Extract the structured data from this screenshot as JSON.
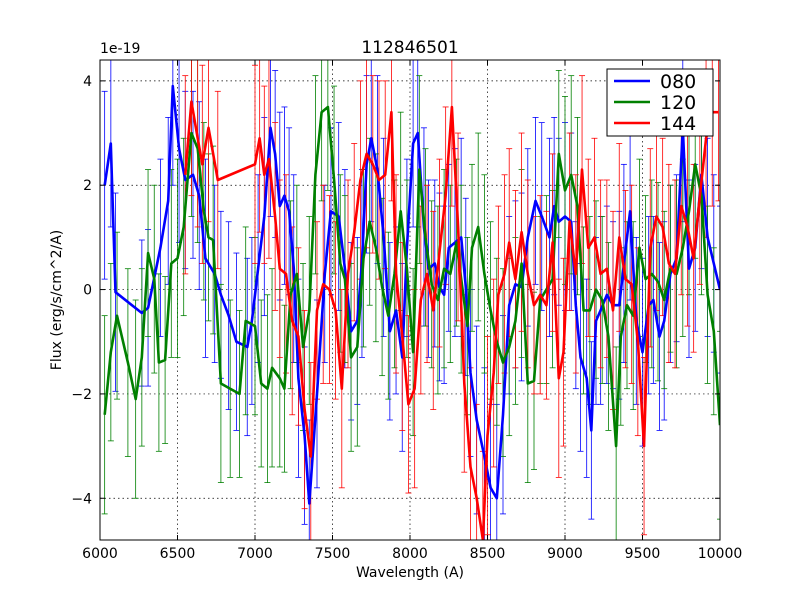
{
  "chart_data": {
    "type": "line",
    "title": "112846501",
    "xlabel": "Wavelength (A)",
    "ylabel": "Flux (erg/s/cm^2/A)",
    "offset_label": "1e-19",
    "xlim": [
      6000,
      10000
    ],
    "ylim": [
      -4.8,
      4.4
    ],
    "x_ticks": [
      6000,
      6500,
      7000,
      7500,
      8000,
      8500,
      9000,
      9500,
      10000
    ],
    "x_tick_labels": [
      "6000",
      "6500",
      "7000",
      "7500",
      "8000",
      "8500",
      "9000",
      "9500",
      "10000"
    ],
    "y_ticks": [
      -4,
      -2,
      0,
      2,
      4
    ],
    "y_tick_labels": [
      "−4",
      "−2",
      "0",
      "2",
      "4"
    ],
    "grid": true,
    "legend_position": "top-right",
    "series": [
      {
        "name": "080",
        "color": "#0000ff",
        "x": [
          6030,
          6070,
          6100,
          6270,
          6310,
          6390,
          6440,
          6470,
          6510,
          6550,
          6600,
          6640,
          6680,
          6740,
          6780,
          6830,
          6880,
          6950,
          6980,
          7020,
          7060,
          7100,
          7130,
          7160,
          7190,
          7220,
          7250,
          7280,
          7320,
          7350,
          7400,
          7450,
          7490,
          7540,
          7580,
          7620,
          7660,
          7690,
          7720,
          7750,
          7790,
          7830,
          7870,
          7910,
          7950,
          7980,
          8020,
          8050,
          8090,
          8120,
          8160,
          8190,
          8220,
          8250,
          8290,
          8330,
          8360,
          8390,
          8430,
          8480,
          8520,
          8560,
          8600,
          8640,
          8680,
          8720,
          8760,
          8810,
          8850,
          8900,
          8930,
          8960,
          9000,
          9040,
          9070,
          9100,
          9140,
          9170,
          9200,
          9230,
          9270,
          9310,
          9350,
          9380,
          9420,
          9460,
          9500,
          9540,
          9570,
          9610,
          9640,
          9680,
          9720,
          9760,
          9800,
          9840,
          9880,
          9920,
          9960,
          10000
        ],
        "y": [
          2.0,
          2.8,
          -0.05,
          -0.45,
          -0.35,
          0.8,
          1.7,
          3.9,
          2.7,
          2.1,
          2.2,
          1.8,
          0.6,
          0.3,
          -0.1,
          -0.5,
          -1.0,
          -1.1,
          -0.6,
          0.4,
          1.4,
          3.1,
          2.6,
          1.6,
          1.8,
          1.5,
          0.4,
          -1.7,
          -2.8,
          -4.1,
          -2.0,
          0.3,
          1.5,
          1.4,
          0.4,
          -0.8,
          -0.6,
          0.5,
          2.4,
          2.9,
          2.3,
          1.0,
          -0.8,
          -0.4,
          -1.3,
          0.8,
          2.8,
          3.0,
          1.2,
          0.4,
          0.5,
          0.05,
          -0.1,
          0.8,
          0.9,
          1.0,
          0.05,
          -1.6,
          -2.5,
          -3.2,
          -3.8,
          -4.0,
          -2.4,
          -0.3,
          0.1,
          0.05,
          1.0,
          1.7,
          1.4,
          1.0,
          1.6,
          1.3,
          1.4,
          1.3,
          -0.3,
          -1.3,
          -1.7,
          -2.7,
          -0.6,
          -0.4,
          -0.1,
          -0.3,
          -0.3,
          0.5,
          1.5,
          -0.6,
          -1.2,
          -0.3,
          -0.2,
          -0.9,
          -0.6,
          0.3,
          0.6,
          3.1,
          0.4,
          0.8,
          2.2,
          1.0,
          0.5,
          0.0
        ],
        "err": [
          1.8,
          1.6,
          1.9,
          1.4,
          1.5,
          1.7,
          1.6,
          1.9,
          1.8,
          1.7,
          1.6,
          1.8,
          1.9,
          1.7,
          1.6,
          1.8,
          1.7,
          1.7,
          1.6,
          1.8,
          1.9,
          1.7,
          1.6,
          1.8,
          1.7,
          1.6,
          1.8,
          1.9,
          1.7,
          1.6,
          1.8,
          1.7,
          1.6,
          1.8,
          1.9,
          1.7,
          1.6,
          1.8,
          1.7,
          1.6,
          1.8,
          1.9,
          1.7,
          1.6,
          1.8,
          1.7,
          1.6,
          1.8,
          1.9,
          1.7,
          1.6,
          1.8,
          1.7,
          1.6,
          1.8,
          1.9,
          1.7,
          1.6,
          1.8,
          1.7,
          1.6,
          1.8,
          1.9,
          1.7,
          1.6,
          1.8,
          1.7,
          1.6,
          1.8,
          1.9,
          1.7,
          1.6,
          1.8,
          1.7,
          1.6,
          1.8,
          1.9,
          1.7,
          1.6,
          1.8,
          1.7,
          1.6,
          1.8,
          1.9,
          1.7,
          1.6,
          1.8,
          1.7,
          1.6,
          1.8,
          1.9,
          1.7,
          1.6,
          1.8,
          1.7,
          1.6,
          1.8,
          1.9,
          1.7,
          1.6
        ]
      },
      {
        "name": "120",
        "color": "#008000",
        "x": [
          6030,
          6070,
          6110,
          6180,
          6230,
          6270,
          6310,
          6350,
          6380,
          6420,
          6460,
          6500,
          6540,
          6590,
          6630,
          6670,
          6700,
          6730,
          6780,
          6840,
          6900,
          6940,
          7000,
          7040,
          7080,
          7110,
          7160,
          7190,
          7230,
          7270,
          7310,
          7350,
          7390,
          7430,
          7470,
          7510,
          7550,
          7580,
          7620,
          7660,
          7700,
          7740,
          7780,
          7820,
          7860,
          7900,
          7940,
          7980,
          8020,
          8060,
          8100,
          8140,
          8180,
          8220,
          8260,
          8300,
          8330,
          8370,
          8400,
          8440,
          8480,
          8520,
          8560,
          8600,
          8640,
          8680,
          8720,
          8760,
          8800,
          8840,
          8880,
          8920,
          8960,
          9000,
          9040,
          9080,
          9120,
          9160,
          9200,
          9240,
          9280,
          9330,
          9360,
          9400,
          9440,
          9480,
          9520,
          9560,
          9600,
          9640,
          9680,
          9720,
          9760,
          9800,
          9840,
          9880,
          9920,
          9960,
          10000
        ],
        "y": [
          -2.4,
          -1.2,
          -0.5,
          -1.4,
          -2.1,
          -1.3,
          0.7,
          0.2,
          -1.4,
          -1.35,
          0.5,
          0.6,
          1.2,
          3.0,
          2.7,
          1.5,
          1.0,
          0.95,
          -1.8,
          -1.9,
          -2.0,
          -0.6,
          -0.7,
          -1.8,
          -1.9,
          -1.5,
          -1.7,
          -1.9,
          -0.1,
          0.3,
          -1.1,
          -0.4,
          2.2,
          3.4,
          3.5,
          2.1,
          0.5,
          0.2,
          -1.3,
          -1.1,
          0.6,
          1.3,
          0.8,
          0.05,
          -0.5,
          0.3,
          1.5,
          0.4,
          -1.2,
          2.3,
          1.0,
          0.1,
          -0.2,
          0.4,
          0.3,
          0.9,
          0.2,
          -0.7,
          0.8,
          1.2,
          0.3,
          -0.4,
          -1.0,
          -1.4,
          -1.1,
          -0.6,
          0.5,
          -1.8,
          -1.75,
          -0.2,
          0.0,
          0.2,
          2.6,
          1.9,
          2.2,
          1.6,
          -0.4,
          -0.4,
          0.0,
          -0.2,
          -0.9,
          -3.0,
          -0.9,
          -0.3,
          -0.5,
          0.8,
          0.2,
          0.3,
          0.15,
          -0.2,
          0.4,
          0.3,
          0.8,
          1.5,
          2.4,
          1.8,
          -0.1,
          -0.8,
          -2.6
        ],
        "err": [
          1.9,
          1.7,
          1.6,
          1.8,
          1.9,
          1.7,
          1.6,
          1.8,
          1.7,
          1.6,
          1.8,
          1.9,
          1.7,
          1.6,
          1.8,
          1.7,
          1.6,
          1.8,
          1.9,
          1.7,
          1.6,
          1.8,
          1.7,
          1.6,
          1.8,
          1.9,
          1.7,
          1.6,
          1.8,
          1.7,
          1.6,
          1.8,
          1.9,
          1.7,
          1.6,
          1.8,
          1.7,
          1.6,
          1.8,
          1.9,
          1.7,
          1.6,
          1.8,
          1.7,
          1.6,
          1.8,
          1.9,
          1.7,
          1.6,
          1.8,
          1.7,
          1.6,
          1.8,
          1.9,
          1.7,
          1.6,
          1.8,
          1.7,
          1.6,
          1.8,
          1.9,
          1.7,
          1.6,
          1.8,
          1.7,
          1.6,
          1.8,
          1.9,
          1.7,
          1.6,
          1.8,
          1.7,
          1.6,
          1.8,
          1.9,
          1.7,
          1.6,
          1.8,
          1.7,
          1.6,
          1.8,
          1.9,
          1.7,
          1.6,
          1.8,
          1.7,
          1.6,
          1.8,
          1.9,
          1.7,
          1.6,
          1.8,
          1.7,
          1.6,
          1.8,
          1.9,
          1.7,
          1.6,
          1.8
        ]
      },
      {
        "name": "144",
        "color": "#ff0000",
        "x": [
          6550,
          6590,
          6630,
          6660,
          6700,
          6760,
          7000,
          7030,
          7060,
          7090,
          7130,
          7160,
          7200,
          7240,
          7280,
          7320,
          7360,
          7400,
          7440,
          7480,
          7520,
          7560,
          7600,
          7640,
          7680,
          7720,
          7760,
          7800,
          7840,
          7880,
          7910,
          7950,
          7990,
          8030,
          8070,
          8110,
          8150,
          8190,
          8230,
          8270,
          8310,
          8350,
          8390,
          8430,
          8470,
          8500,
          8540,
          8570,
          8610,
          8640,
          8680,
          8720,
          8760,
          8800,
          8840,
          8880,
          8920,
          8960,
          8990,
          9030,
          9070,
          9110,
          9150,
          9190,
          9230,
          9270,
          9310,
          9350,
          9390,
          9430,
          9470,
          9510,
          9550,
          9590,
          9630,
          9670,
          9710,
          9750,
          9790,
          9830,
          9870,
          9910,
          9950,
          9990
        ],
        "y": [
          2.2,
          3.6,
          2.9,
          2.4,
          3.1,
          2.1,
          2.4,
          2.9,
          2.2,
          2.5,
          1.4,
          0.4,
          0.3,
          -0.6,
          -0.9,
          -2.3,
          -3.2,
          -0.4,
          0.1,
          0.0,
          -0.4,
          -1.9,
          0.3,
          1.1,
          2.1,
          2.6,
          2.4,
          2.1,
          2.2,
          3.4,
          0.3,
          -0.9,
          -2.2,
          -1.9,
          -0.2,
          0.3,
          -0.4,
          0.7,
          1.8,
          3.5,
          1.2,
          -1.8,
          -3.4,
          -4.0,
          -4.8,
          -2.8,
          -1.6,
          -0.1,
          0.3,
          0.9,
          0.2,
          1.1,
          0.3,
          -0.3,
          -0.1,
          -0.3,
          0.9,
          -1.7,
          -1.2,
          1.3,
          0.3,
          2.3,
          0.8,
          1.0,
          0.3,
          0.4,
          -0.4,
          1.0,
          0.2,
          0.1,
          -1.0,
          -3.0,
          0.8,
          1.4,
          1.2,
          0.5,
          0.3,
          1.6,
          1.2,
          0.6,
          1.8,
          2.9,
          3.4,
          3.4
        ],
        "err": [
          1.9,
          1.8,
          1.7,
          1.9,
          1.8,
          1.7,
          1.9,
          1.8,
          1.7,
          1.9,
          1.8,
          1.7,
          1.9,
          1.8,
          1.7,
          1.9,
          1.8,
          1.7,
          1.9,
          1.8,
          1.7,
          1.9,
          1.8,
          1.7,
          1.9,
          1.8,
          1.7,
          1.9,
          1.8,
          1.7,
          1.9,
          1.8,
          1.7,
          1.9,
          1.8,
          1.7,
          1.9,
          1.8,
          1.7,
          1.9,
          1.8,
          1.7,
          1.9,
          1.8,
          1.7,
          1.9,
          1.8,
          1.7,
          1.9,
          1.8,
          1.7,
          1.9,
          1.8,
          1.7,
          1.9,
          1.8,
          1.7,
          1.9,
          1.8,
          1.7,
          1.9,
          1.8,
          1.7,
          1.9,
          1.8,
          1.7,
          1.9,
          1.8,
          1.7,
          1.9,
          1.8,
          1.7,
          1.9,
          1.8,
          1.7,
          1.9,
          1.8,
          1.7,
          1.9,
          1.8,
          1.7,
          1.9,
          1.8,
          1.7
        ]
      }
    ]
  }
}
